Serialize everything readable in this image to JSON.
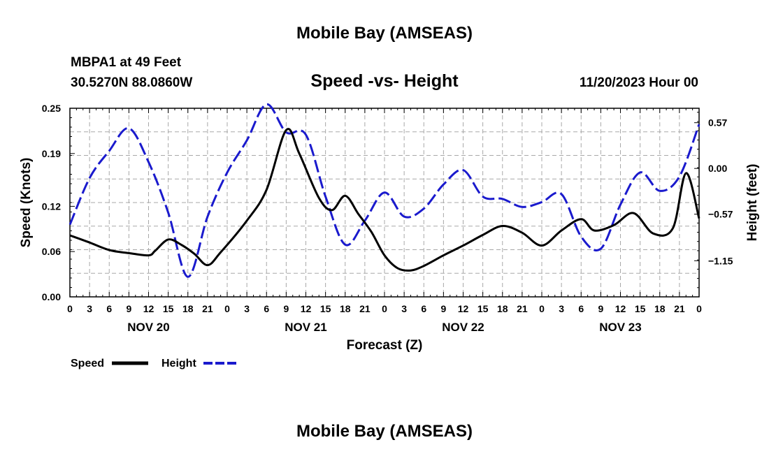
{
  "chart_data": {
    "type": "line",
    "title": "Mobile Bay (AMSEAS)",
    "subtitle": "Speed -vs- Height",
    "station": "MBPA1 at 49 Feet",
    "location": "30.5270N  88.0860W",
    "date_label": "11/20/2023 Hour 00",
    "footer_title": "Mobile Bay (AMSEAS)",
    "xlabel": "Forecast (Z)",
    "ylabel": "Speed (Knots)",
    "y2label": "Height (feet)",
    "x_range": [
      0,
      96
    ],
    "x_ticks": [
      0,
      3,
      6,
      9,
      12,
      15,
      18,
      21,
      24,
      27,
      30,
      33,
      36,
      39,
      42,
      45,
      48,
      51,
      54,
      57,
      60,
      63,
      66,
      69,
      72,
      75,
      78,
      81,
      84,
      87,
      90,
      93,
      96
    ],
    "x_tick_labels": [
      "0",
      "3",
      "6",
      "9",
      "12",
      "15",
      "18",
      "21",
      "0",
      "3",
      "6",
      "9",
      "12",
      "15",
      "18",
      "21",
      "0",
      "3",
      "6",
      "9",
      "12",
      "15",
      "18",
      "21",
      "0",
      "3",
      "6",
      "9",
      "12",
      "15",
      "18",
      "21",
      "0"
    ],
    "day_labels": [
      {
        "label": "NOV 20",
        "x": 12
      },
      {
        "label": "NOV 21",
        "x": 36
      },
      {
        "label": "NOV 22",
        "x": 60
      },
      {
        "label": "NOV 23",
        "x": 84
      }
    ],
    "ylim": [
      0,
      0.25
    ],
    "y_ticks": [
      0.0,
      0.06,
      0.12,
      0.19,
      0.25
    ],
    "y_tick_labels": [
      "0.00",
      "0.06",
      "0.12",
      "0.19",
      "0.25"
    ],
    "y2lim": [
      -1.6,
      0.75
    ],
    "y2_ticks": [
      -1.15,
      -0.57,
      0.0,
      0.57
    ],
    "y2_tick_labels": [
      "−1.15",
      "−0.57",
      "0.00",
      "0.57"
    ],
    "grid": true,
    "legend_placement": "bottom-left",
    "series": [
      {
        "name": "Speed",
        "axis": "left",
        "color": "#000000",
        "dash": "solid",
        "points": [
          [
            0,
            0.0815
          ],
          [
            3,
            0.072
          ],
          [
            6,
            0.062
          ],
          [
            9,
            0.058
          ],
          [
            12,
            0.055
          ],
          [
            13,
            0.061
          ],
          [
            15,
            0.076
          ],
          [
            17,
            0.069
          ],
          [
            19,
            0.057
          ],
          [
            21,
            0.042
          ],
          [
            23,
            0.059
          ],
          [
            27,
            0.101
          ],
          [
            30,
            0.142
          ],
          [
            33,
            0.221
          ],
          [
            35,
            0.19
          ],
          [
            38,
            0.131
          ],
          [
            40,
            0.115
          ],
          [
            42,
            0.134
          ],
          [
            44,
            0.11
          ],
          [
            46,
            0.086
          ],
          [
            48,
            0.055
          ],
          [
            50,
            0.038
          ],
          [
            52,
            0.035
          ],
          [
            54,
            0.041
          ],
          [
            57,
            0.055
          ],
          [
            60,
            0.068
          ],
          [
            63,
            0.082
          ],
          [
            66,
            0.094
          ],
          [
            69,
            0.085
          ],
          [
            72,
            0.068
          ],
          [
            75,
            0.088
          ],
          [
            78,
            0.103
          ],
          [
            80,
            0.088
          ],
          [
            83,
            0.095
          ],
          [
            86,
            0.111
          ],
          [
            89,
            0.084
          ],
          [
            92,
            0.091
          ],
          [
            94,
            0.164
          ],
          [
            96,
            0.104
          ]
        ]
      },
      {
        "name": "Height",
        "axis": "right",
        "color": "#1a1acd",
        "dash": "dashed",
        "points": [
          [
            0,
            -0.7
          ],
          [
            3,
            -0.12
          ],
          [
            6,
            0.22
          ],
          [
            9,
            0.5
          ],
          [
            12,
            0.08
          ],
          [
            15,
            -0.55
          ],
          [
            18,
            -1.35
          ],
          [
            21,
            -0.6
          ],
          [
            24,
            -0.05
          ],
          [
            27,
            0.35
          ],
          [
            30,
            0.8
          ],
          [
            33,
            0.45
          ],
          [
            36,
            0.42
          ],
          [
            39,
            -0.35
          ],
          [
            42,
            -0.95
          ],
          [
            45,
            -0.65
          ],
          [
            48,
            -0.3
          ],
          [
            51,
            -0.6
          ],
          [
            54,
            -0.5
          ],
          [
            57,
            -0.2
          ],
          [
            60,
            -0.02
          ],
          [
            63,
            -0.35
          ],
          [
            66,
            -0.38
          ],
          [
            69,
            -0.48
          ],
          [
            72,
            -0.42
          ],
          [
            75,
            -0.32
          ],
          [
            78,
            -0.85
          ],
          [
            81,
            -1.0
          ],
          [
            84,
            -0.45
          ],
          [
            87,
            -0.05
          ],
          [
            90,
            -0.28
          ],
          [
            93,
            -0.1
          ],
          [
            96,
            0.55
          ]
        ]
      }
    ]
  }
}
